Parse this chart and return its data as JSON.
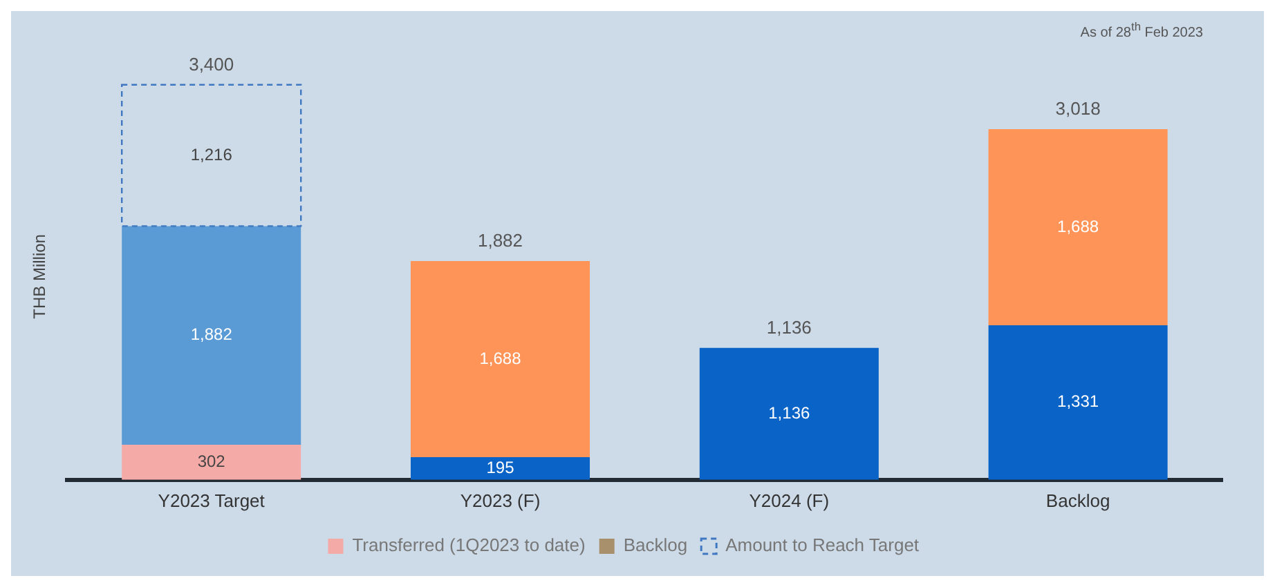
{
  "chart_data": {
    "type": "bar",
    "stacked": true,
    "ylabel": "THB Million",
    "annotations": [
      "As of 28$^{th}$ Feb 2023"
    ],
    "categories": [
      "Y2023 Target",
      "Y2023 (F)",
      "Y2024 (F)",
      "Backlog"
    ],
    "series": [
      {
        "name": "Transferred (1Q2023 to date)",
        "color": "#f4aaa6",
        "values": [
          302,
          null,
          null,
          null
        ],
        "value_labels": [
          "302",
          null,
          null,
          null
        ]
      },
      {
        "color": "#5b9bd5",
        "values": [
          1882,
          null,
          null,
          null
        ],
        "value_labels": [
          "1,882",
          null,
          null,
          null
        ]
      },
      {
        "name": "Backlog",
        "color": "#a8906c",
        "values": [
          null,
          null,
          null,
          null
        ]
      },
      {
        "name": "Amount to Reach Target",
        "color": "#3f78c0",
        "line_style": "dashed",
        "values": [
          1216,
          null,
          null,
          null
        ],
        "value_labels": [
          "1,216",
          null,
          null,
          null
        ]
      },
      {
        "color": "#0a64c8",
        "values": [
          null,
          195,
          1136,
          1331
        ],
        "value_labels": [
          null,
          "195",
          "1,136",
          "1,331"
        ]
      },
      {
        "color": "#ff9459",
        "values": [
          null,
          1688,
          null,
          1688
        ],
        "value_labels": [
          null,
          "1,688",
          null,
          "1,688"
        ]
      }
    ],
    "totals": [
      "3,400",
      "1,882",
      "1,136",
      "3,018"
    ],
    "legend": "bottom",
    "grid": false
  }
}
